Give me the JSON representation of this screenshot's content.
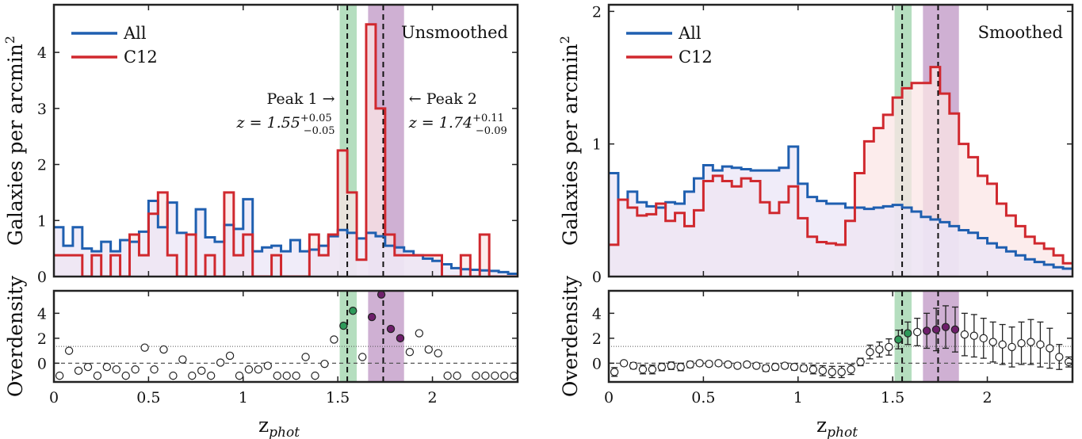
{
  "figure": {
    "x_axis_label": "z",
    "x_axis_subscript": "phot"
  },
  "colors": {
    "all": "#1f5fb0",
    "c12": "#d0282e",
    "peak1_band": "#a8d8b4",
    "peak2_band": "#c7a2cb",
    "all_fill": "#ebe6f7",
    "c12_fill": "#fbe6e6",
    "green_point": "#2e9a5a",
    "purple_point": "#6e1e6b"
  },
  "legend": [
    {
      "label": "All",
      "color": "#1f5fb0"
    },
    {
      "label": "C12",
      "color": "#d0282e"
    }
  ],
  "peaks": {
    "peak1": {
      "z": 1.55,
      "band": [
        1.51,
        1.6
      ],
      "label": "Peak 1 →",
      "value_text": "z = 1.55",
      "sup": "+0.05",
      "sub": "−0.05"
    },
    "peak2": {
      "z": 1.74,
      "band": [
        1.66,
        1.85
      ],
      "label": "← Peak 2",
      "value_text": "z = 1.74",
      "sup": "+0.11",
      "sub": "−0.09"
    }
  },
  "chart_data": [
    {
      "type": "line",
      "panel": "top-left",
      "corner_label": "Unsmoothed",
      "ylabel": "Galaxies per arcmin",
      "ylabel_sup": "2",
      "xlim": [
        0,
        2.45
      ],
      "ylim": [
        0,
        4.85
      ],
      "yticks": [
        0,
        1,
        2,
        3,
        4
      ],
      "xticks": [
        0,
        0.5,
        1,
        1.5,
        2
      ],
      "step_edges": [
        0.0,
        0.05,
        0.1,
        0.15,
        0.2,
        0.25,
        0.3,
        0.35,
        0.4,
        0.45,
        0.5,
        0.55,
        0.6,
        0.65,
        0.7,
        0.75,
        0.8,
        0.85,
        0.9,
        0.95,
        1.0,
        1.05,
        1.1,
        1.15,
        1.2,
        1.25,
        1.3,
        1.35,
        1.4,
        1.45,
        1.5,
        1.55,
        1.6,
        1.65,
        1.7,
        1.75,
        1.8,
        1.85,
        1.9,
        1.95,
        2.0,
        2.05,
        2.1,
        2.15,
        2.2,
        2.25,
        2.3,
        2.35,
        2.4,
        2.45
      ],
      "series": [
        {
          "name": "All",
          "values": [
            0.88,
            0.55,
            0.88,
            0.5,
            0.45,
            0.62,
            0.45,
            0.65,
            0.62,
            0.8,
            1.35,
            0.88,
            1.32,
            0.78,
            0.75,
            1.2,
            0.7,
            0.62,
            0.92,
            0.85,
            1.38,
            0.45,
            0.52,
            0.55,
            0.45,
            0.65,
            0.45,
            0.48,
            0.55,
            0.72,
            0.83,
            0.78,
            0.68,
            0.78,
            0.72,
            0.55,
            0.52,
            0.45,
            0.38,
            0.32,
            0.28,
            0.22,
            0.15,
            0.13,
            0.12,
            0.11,
            0.1,
            0.08,
            0.05
          ]
        },
        {
          "name": "C12",
          "values": [
            0.38,
            0.38,
            0.38,
            0.0,
            0.38,
            0.0,
            0.38,
            0.0,
            0.75,
            0.38,
            1.12,
            1.5,
            0.38,
            0.0,
            0.75,
            0.0,
            0.38,
            0.0,
            1.5,
            0.38,
            0.75,
            0.0,
            0.0,
            0.38,
            0.0,
            0.0,
            0.0,
            0.75,
            0.38,
            0.75,
            2.25,
            1.5,
            0.3,
            4.5,
            3.0,
            0.75,
            0.38,
            0.38,
            0.38,
            0.38,
            0.38,
            0.0,
            0.0,
            0.38,
            0.0,
            0.75,
            0.0,
            0.0,
            0.0
          ]
        }
      ]
    },
    {
      "type": "scatter",
      "panel": "bottom-left",
      "ylabel": "Overdensity",
      "xlim": [
        0,
        2.45
      ],
      "ylim": [
        -1.5,
        5.8
      ],
      "yticks": [
        0,
        2,
        4
      ],
      "xticks": [
        0,
        0.5,
        1,
        1.5,
        2
      ],
      "threshold": 1.35,
      "points": [
        [
          0.03,
          -1.0
        ],
        [
          0.08,
          1.0
        ],
        [
          0.13,
          -0.6
        ],
        [
          0.18,
          -0.3
        ],
        [
          0.23,
          -1.0
        ],
        [
          0.28,
          -0.3
        ],
        [
          0.33,
          -0.5
        ],
        [
          0.38,
          -1.0
        ],
        [
          0.43,
          -0.5
        ],
        [
          0.48,
          1.25
        ],
        [
          0.53,
          -0.5
        ],
        [
          0.58,
          1.1
        ],
        [
          0.63,
          -1.0
        ],
        [
          0.68,
          0.3
        ],
        [
          0.73,
          -1.0
        ],
        [
          0.78,
          -0.6
        ],
        [
          0.83,
          -1.0
        ],
        [
          0.88,
          0.05
        ],
        [
          0.93,
          0.6
        ],
        [
          0.98,
          -1.0
        ],
        [
          1.03,
          -0.5
        ],
        [
          1.08,
          -0.5
        ],
        [
          1.13,
          -0.2
        ],
        [
          1.18,
          -1.0
        ],
        [
          1.23,
          -1.0
        ],
        [
          1.28,
          -1.0
        ],
        [
          1.33,
          0.5
        ],
        [
          1.38,
          -1.0
        ],
        [
          1.43,
          -0.05
        ],
        [
          1.48,
          1.9
        ],
        [
          1.53,
          3.0
        ],
        [
          1.58,
          4.2
        ],
        [
          1.63,
          0.5
        ],
        [
          1.68,
          3.7
        ],
        [
          1.73,
          5.5
        ],
        [
          1.78,
          2.75
        ],
        [
          1.83,
          2.0
        ],
        [
          1.88,
          0.9
        ],
        [
          1.93,
          2.4
        ],
        [
          1.98,
          1.1
        ],
        [
          2.03,
          0.8
        ],
        [
          2.08,
          -1.0
        ],
        [
          2.13,
          -1.0
        ],
        [
          2.23,
          -1.0
        ],
        [
          2.28,
          -1.0
        ],
        [
          2.33,
          -1.0
        ],
        [
          2.38,
          -1.0
        ],
        [
          2.43,
          -1.0
        ]
      ]
    },
    {
      "type": "line",
      "panel": "top-right",
      "corner_label": "Smoothed",
      "ylabel": "Galaxies per arcmin",
      "ylabel_sup": "2",
      "xlim": [
        0,
        2.45
      ],
      "ylim": [
        0,
        2.05
      ],
      "yticks": [
        0,
        1,
        2
      ],
      "xticks": [
        0,
        0.5,
        1,
        1.5,
        2
      ],
      "step_edges": [
        0.0,
        0.05,
        0.1,
        0.15,
        0.2,
        0.25,
        0.3,
        0.35,
        0.4,
        0.45,
        0.5,
        0.55,
        0.6,
        0.65,
        0.7,
        0.75,
        0.8,
        0.85,
        0.9,
        0.95,
        1.0,
        1.05,
        1.1,
        1.15,
        1.2,
        1.25,
        1.3,
        1.35,
        1.4,
        1.45,
        1.5,
        1.55,
        1.6,
        1.65,
        1.7,
        1.75,
        1.8,
        1.85,
        1.9,
        1.95,
        2.0,
        2.05,
        2.1,
        2.15,
        2.2,
        2.25,
        2.3,
        2.35,
        2.4,
        2.45
      ],
      "series": [
        {
          "name": "All",
          "values": [
            0.78,
            0.58,
            0.64,
            0.56,
            0.53,
            0.52,
            0.56,
            0.55,
            0.64,
            0.74,
            0.84,
            0.8,
            0.83,
            0.82,
            0.81,
            0.8,
            0.8,
            0.8,
            0.82,
            0.98,
            0.7,
            0.6,
            0.57,
            0.55,
            0.55,
            0.52,
            0.52,
            0.51,
            0.52,
            0.53,
            0.54,
            0.52,
            0.49,
            0.45,
            0.43,
            0.41,
            0.38,
            0.35,
            0.33,
            0.29,
            0.25,
            0.22,
            0.19,
            0.16,
            0.13,
            0.11,
            0.09,
            0.07,
            0.06
          ]
        },
        {
          "name": "C12",
          "values": [
            0.24,
            0.58,
            0.52,
            0.46,
            0.47,
            0.55,
            0.42,
            0.48,
            0.38,
            0.5,
            0.72,
            0.76,
            0.72,
            0.68,
            0.74,
            0.72,
            0.56,
            0.48,
            0.56,
            0.68,
            0.44,
            0.3,
            0.26,
            0.25,
            0.24,
            0.42,
            0.78,
            1.02,
            1.12,
            1.22,
            1.35,
            1.42,
            1.46,
            1.46,
            1.58,
            1.38,
            1.23,
            1.0,
            0.9,
            0.76,
            0.7,
            0.55,
            0.46,
            0.38,
            0.3,
            0.25,
            0.21,
            0.16,
            0.1
          ]
        }
      ]
    },
    {
      "type": "scatter",
      "panel": "bottom-right",
      "ylabel": "Overdensity",
      "xlim": [
        0,
        2.45
      ],
      "ylim": [
        -1.5,
        5.8
      ],
      "yticks": [
        0,
        2,
        4
      ],
      "xticks": [
        0,
        0.5,
        1,
        1.5,
        2
      ],
      "threshold": 1.35,
      "points": [
        [
          0.03,
          -0.7,
          0.35
        ],
        [
          0.08,
          0.0,
          0.2
        ],
        [
          0.13,
          -0.2,
          0.25
        ],
        [
          0.18,
          -0.5,
          0.35
        ],
        [
          0.23,
          -0.5,
          0.35
        ],
        [
          0.28,
          -0.3,
          0.3
        ],
        [
          0.33,
          -0.2,
          0.3
        ],
        [
          0.38,
          -0.3,
          0.3
        ],
        [
          0.43,
          -0.1,
          0.25
        ],
        [
          0.48,
          0.0,
          0.2
        ],
        [
          0.53,
          -0.05,
          0.2
        ],
        [
          0.58,
          0.0,
          0.2
        ],
        [
          0.63,
          -0.1,
          0.2
        ],
        [
          0.68,
          -0.2,
          0.2
        ],
        [
          0.73,
          -0.1,
          0.2
        ],
        [
          0.78,
          -0.2,
          0.2
        ],
        [
          0.83,
          -0.4,
          0.25
        ],
        [
          0.88,
          -0.3,
          0.25
        ],
        [
          0.93,
          -0.2,
          0.2
        ],
        [
          0.98,
          -0.3,
          0.25
        ],
        [
          1.03,
          -0.4,
          0.25
        ],
        [
          1.08,
          -0.5,
          0.35
        ],
        [
          1.13,
          -0.6,
          0.4
        ],
        [
          1.18,
          -0.7,
          0.45
        ],
        [
          1.23,
          -0.7,
          0.45
        ],
        [
          1.28,
          -0.5,
          0.4
        ],
        [
          1.33,
          0.1,
          0.3
        ],
        [
          1.38,
          0.9,
          0.55
        ],
        [
          1.43,
          1.1,
          0.6
        ],
        [
          1.48,
          1.3,
          0.65
        ],
        [
          1.53,
          1.9,
          0.75
        ],
        [
          1.58,
          2.4,
          0.9
        ],
        [
          1.63,
          2.5,
          1.1
        ],
        [
          1.68,
          2.6,
          1.4
        ],
        [
          1.73,
          2.7,
          1.7
        ],
        [
          1.78,
          2.9,
          1.7
        ],
        [
          1.83,
          2.7,
          1.8
        ],
        [
          1.88,
          2.3,
          1.7
        ],
        [
          1.93,
          2.2,
          1.7
        ],
        [
          1.98,
          2.0,
          1.6
        ],
        [
          2.03,
          1.7,
          1.6
        ],
        [
          2.08,
          1.5,
          1.6
        ],
        [
          2.13,
          1.3,
          1.6
        ],
        [
          2.18,
          1.6,
          1.7
        ],
        [
          2.23,
          1.7,
          1.8
        ],
        [
          2.28,
          1.5,
          1.8
        ],
        [
          2.33,
          1.2,
          1.6
        ],
        [
          2.38,
          0.5,
          1.0
        ],
        [
          2.43,
          0.1,
          0.4
        ]
      ]
    }
  ]
}
